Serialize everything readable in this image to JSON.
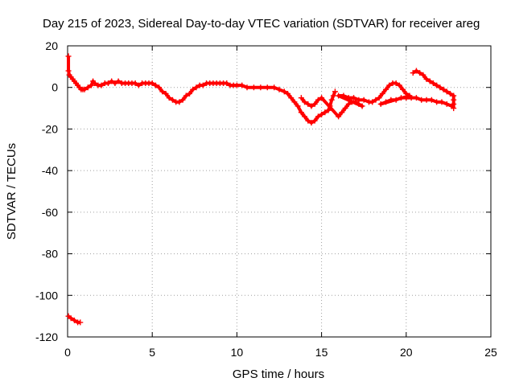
{
  "chart_data": {
    "type": "scatter",
    "title": "Day 215 of 2023, Sidereal Day-to-day VTEC variation (SDTVAR) for receiver areg",
    "xlabel": "GPS time / hours",
    "ylabel": "SDTVAR / TECUs",
    "xlim": [
      0,
      25
    ],
    "ylim": [
      -120,
      20
    ],
    "xticks": [
      "0",
      "5",
      "10",
      "15",
      "20",
      "25"
    ],
    "yticks": [
      "20",
      "0",
      "-20",
      "-40",
      "-60",
      "-80",
      "-100",
      "-120"
    ],
    "grid": true,
    "marker": "plus",
    "color": "#ff0000",
    "series": [
      {
        "name": "SDTVAR",
        "points": [
          [
            0.05,
            15
          ],
          [
            0.05,
            8
          ],
          [
            0.1,
            6
          ],
          [
            0.2,
            5
          ],
          [
            0.3,
            4
          ],
          [
            0.4,
            3
          ],
          [
            0.5,
            2
          ],
          [
            0.6,
            1
          ],
          [
            0.7,
            0
          ],
          [
            0.8,
            -1
          ],
          [
            0.9,
            -1
          ],
          [
            1.0,
            -1
          ],
          [
            1.2,
            0
          ],
          [
            1.4,
            1
          ],
          [
            1.5,
            3
          ],
          [
            1.6,
            2
          ],
          [
            1.8,
            1
          ],
          [
            2.0,
            1
          ],
          [
            2.2,
            2
          ],
          [
            2.4,
            2
          ],
          [
            2.6,
            3
          ],
          [
            2.8,
            2
          ],
          [
            3.0,
            3
          ],
          [
            3.2,
            2
          ],
          [
            3.4,
            2
          ],
          [
            3.6,
            2
          ],
          [
            3.8,
            2
          ],
          [
            4.0,
            2
          ],
          [
            4.2,
            1
          ],
          [
            4.4,
            2
          ],
          [
            4.6,
            2
          ],
          [
            4.8,
            2
          ],
          [
            5.0,
            2
          ],
          [
            5.2,
            1
          ],
          [
            5.4,
            0
          ],
          [
            5.6,
            -2
          ],
          [
            5.8,
            -3
          ],
          [
            6.0,
            -5
          ],
          [
            6.2,
            -6
          ],
          [
            6.4,
            -7
          ],
          [
            6.6,
            -7
          ],
          [
            6.8,
            -6
          ],
          [
            7.0,
            -4
          ],
          [
            7.2,
            -3
          ],
          [
            7.4,
            -1
          ],
          [
            7.6,
            0
          ],
          [
            7.8,
            1
          ],
          [
            8.0,
            1
          ],
          [
            8.2,
            2
          ],
          [
            8.4,
            2
          ],
          [
            8.6,
            2
          ],
          [
            8.8,
            2
          ],
          [
            9.0,
            2
          ],
          [
            9.2,
            2
          ],
          [
            9.4,
            2
          ],
          [
            9.6,
            1
          ],
          [
            9.8,
            1
          ],
          [
            10.0,
            1
          ],
          [
            10.3,
            1
          ],
          [
            10.6,
            0
          ],
          [
            11.0,
            0
          ],
          [
            11.4,
            0
          ],
          [
            11.8,
            0
          ],
          [
            12.2,
            0
          ],
          [
            12.5,
            -1
          ],
          [
            12.8,
            -2
          ],
          [
            13.0,
            -3
          ],
          [
            13.2,
            -5
          ],
          [
            13.4,
            -7
          ],
          [
            13.6,
            -9
          ],
          [
            13.8,
            -12
          ],
          [
            14.0,
            -14
          ],
          [
            14.2,
            -16
          ],
          [
            14.4,
            -17
          ],
          [
            14.6,
            -16
          ],
          [
            14.8,
            -14
          ],
          [
            15.0,
            -13
          ],
          [
            15.2,
            -12
          ],
          [
            15.4,
            -11
          ],
          [
            15.5,
            -9
          ],
          [
            15.6,
            -6
          ],
          [
            15.7,
            -4
          ],
          [
            15.8,
            -2
          ],
          [
            13.8,
            -5
          ],
          [
            14.0,
            -7
          ],
          [
            14.2,
            -8
          ],
          [
            14.4,
            -9
          ],
          [
            14.6,
            -8
          ],
          [
            14.8,
            -6
          ],
          [
            15.0,
            -5
          ],
          [
            16.0,
            -14
          ],
          [
            16.2,
            -12
          ],
          [
            16.4,
            -10
          ],
          [
            16.6,
            -8
          ],
          [
            16.8,
            -7
          ],
          [
            17.0,
            -7
          ],
          [
            17.2,
            -8
          ],
          [
            17.4,
            -9
          ],
          [
            16.0,
            -4
          ],
          [
            16.3,
            -4
          ],
          [
            16.6,
            -5
          ],
          [
            16.9,
            -5
          ],
          [
            17.2,
            -6
          ],
          [
            17.5,
            -6
          ],
          [
            17.8,
            -7
          ],
          [
            18.0,
            -7
          ],
          [
            18.2,
            -6
          ],
          [
            18.4,
            -5
          ],
          [
            18.6,
            -3
          ],
          [
            18.8,
            -1
          ],
          [
            19.0,
            1
          ],
          [
            19.2,
            2
          ],
          [
            19.4,
            2
          ],
          [
            19.6,
            1
          ],
          [
            19.8,
            -1
          ],
          [
            20.0,
            -3
          ],
          [
            20.2,
            -4
          ],
          [
            18.5,
            -8
          ],
          [
            18.8,
            -7
          ],
          [
            19.1,
            -6
          ],
          [
            19.4,
            -6
          ],
          [
            19.7,
            -5
          ],
          [
            20.0,
            -5
          ],
          [
            20.3,
            -5
          ],
          [
            20.6,
            -5
          ],
          [
            20.9,
            -6
          ],
          [
            21.2,
            -6
          ],
          [
            21.5,
            -6
          ],
          [
            21.8,
            -7
          ],
          [
            22.1,
            -7
          ],
          [
            22.4,
            -8
          ],
          [
            22.7,
            -9
          ],
          [
            20.4,
            7
          ],
          [
            20.6,
            8
          ],
          [
            20.8,
            7
          ],
          [
            21.0,
            6
          ],
          [
            21.2,
            4
          ],
          [
            21.4,
            3
          ],
          [
            21.6,
            2
          ],
          [
            21.8,
            1
          ],
          [
            22.0,
            0
          ],
          [
            22.2,
            -1
          ],
          [
            22.4,
            -2
          ],
          [
            22.6,
            -3
          ],
          [
            22.8,
            -4
          ],
          [
            22.8,
            -6
          ],
          [
            22.8,
            -8
          ],
          [
            22.8,
            -10
          ],
          [
            0.05,
            -110
          ],
          [
            0.2,
            -111
          ],
          [
            0.4,
            -112
          ],
          [
            0.6,
            -113
          ],
          [
            0.75,
            -113
          ]
        ]
      }
    ]
  }
}
